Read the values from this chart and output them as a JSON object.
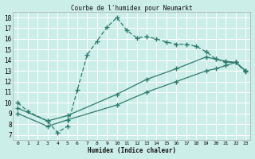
{
  "title": "Courbe de l'humidex pour Neumarkt",
  "xlabel": "Humidex (Indice chaleur)",
  "bg_color": "#cceee8",
  "line_color": "#2d7a6e",
  "grid_color": "#ffffff",
  "xlim": [
    -0.5,
    23.5
  ],
  "ylim": [
    6.5,
    18.5
  ],
  "xtick_labels": [
    "0",
    "1",
    "2",
    "3",
    "4",
    "5",
    "6",
    "7",
    "8",
    "9",
    "10",
    "11",
    "12",
    "13",
    "14",
    "15",
    "16",
    "17",
    "18",
    "19",
    "20",
    "21",
    "22",
    "23"
  ],
  "ytick_labels": [
    "7",
    "8",
    "9",
    "10",
    "11",
    "12",
    "13",
    "14",
    "15",
    "16",
    "17",
    "18"
  ],
  "xticks": [
    0,
    1,
    2,
    3,
    4,
    5,
    6,
    7,
    8,
    9,
    10,
    11,
    12,
    13,
    14,
    15,
    16,
    17,
    18,
    19,
    20,
    21,
    22,
    23
  ],
  "yticks": [
    7,
    8,
    9,
    10,
    11,
    12,
    13,
    14,
    15,
    16,
    17,
    18
  ],
  "curve1_x": [
    0,
    1,
    3,
    4,
    5,
    6,
    7,
    8,
    9,
    10,
    11,
    12,
    13,
    14,
    15,
    16,
    17,
    18,
    19,
    20,
    21,
    22,
    23
  ],
  "curve1_y": [
    10.0,
    9.2,
    8.3,
    7.2,
    7.8,
    11.2,
    14.5,
    15.8,
    17.1,
    18.0,
    16.8,
    16.1,
    16.2,
    16.0,
    15.7,
    15.5,
    15.5,
    15.3,
    14.8,
    14.1,
    13.8,
    13.8,
    12.9
  ],
  "curve2_x": [
    0,
    3,
    5,
    10,
    13,
    16,
    19,
    20,
    21,
    22,
    23
  ],
  "curve2_y": [
    9.5,
    8.3,
    8.8,
    10.8,
    12.2,
    13.2,
    14.3,
    14.1,
    13.9,
    13.8,
    13.0
  ],
  "curve3_x": [
    0,
    3,
    5,
    10,
    13,
    16,
    19,
    20,
    21,
    22,
    23
  ],
  "curve3_y": [
    9.0,
    7.8,
    8.4,
    9.8,
    11.0,
    12.0,
    13.0,
    13.2,
    13.5,
    13.8,
    13.0
  ]
}
